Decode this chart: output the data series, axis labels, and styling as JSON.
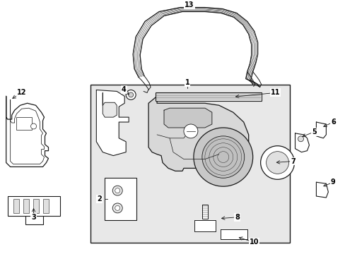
{
  "bg_color": "#ffffff",
  "line_color": "#1a1a1a",
  "box_bg": "#e8e8e8",
  "panel_bg": "#d4d4d4",
  "label_color": "#000000",
  "figsize": [
    4.89,
    3.6
  ],
  "dpi": 100
}
